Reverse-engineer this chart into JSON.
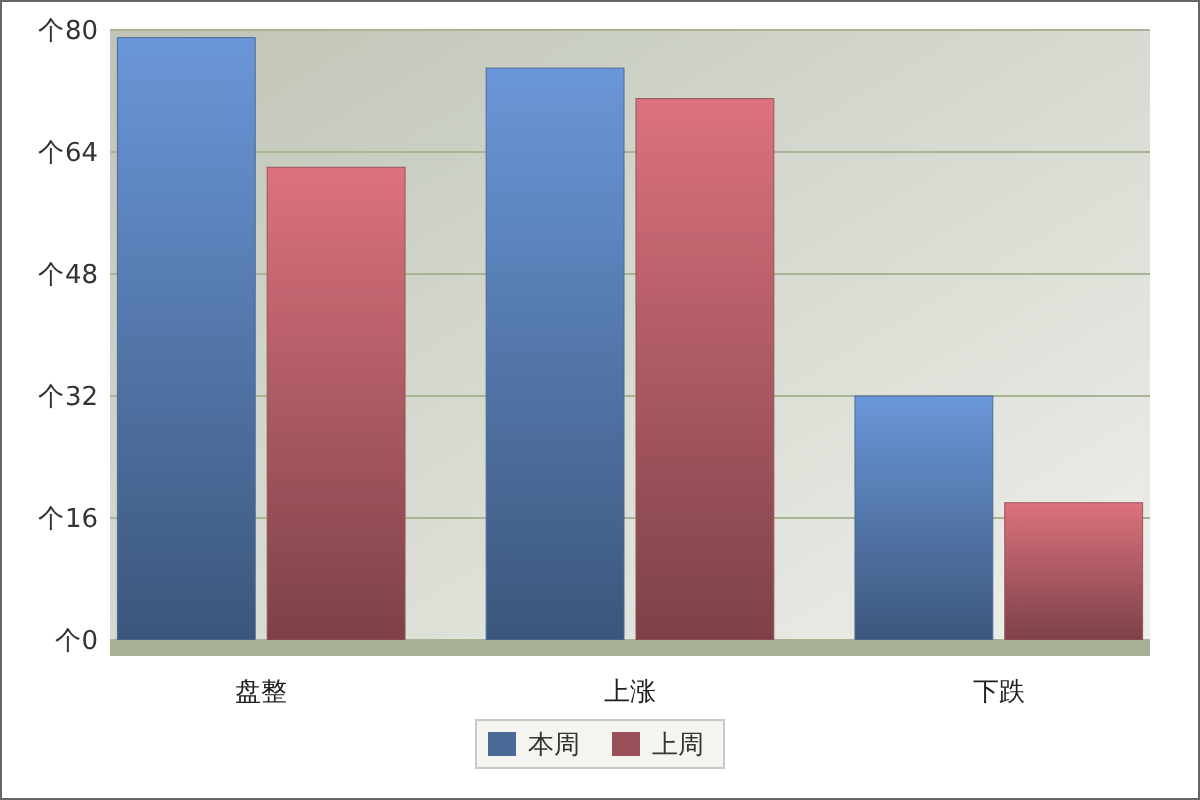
{
  "chart_data": {
    "type": "bar",
    "categories": [
      "盘整",
      "上涨",
      "下跌"
    ],
    "series": [
      {
        "name": "本周",
        "color": "#4a6a98",
        "values": [
          79,
          75,
          32
        ]
      },
      {
        "name": "上周",
        "color": "#9a5058",
        "values": [
          62,
          71,
          18
        ]
      }
    ],
    "ylim": [
      0,
      80
    ],
    "yticks": [
      0,
      16,
      32,
      48,
      64,
      80
    ],
    "ylabel": "个",
    "grid": "y",
    "legend": "bottom"
  }
}
